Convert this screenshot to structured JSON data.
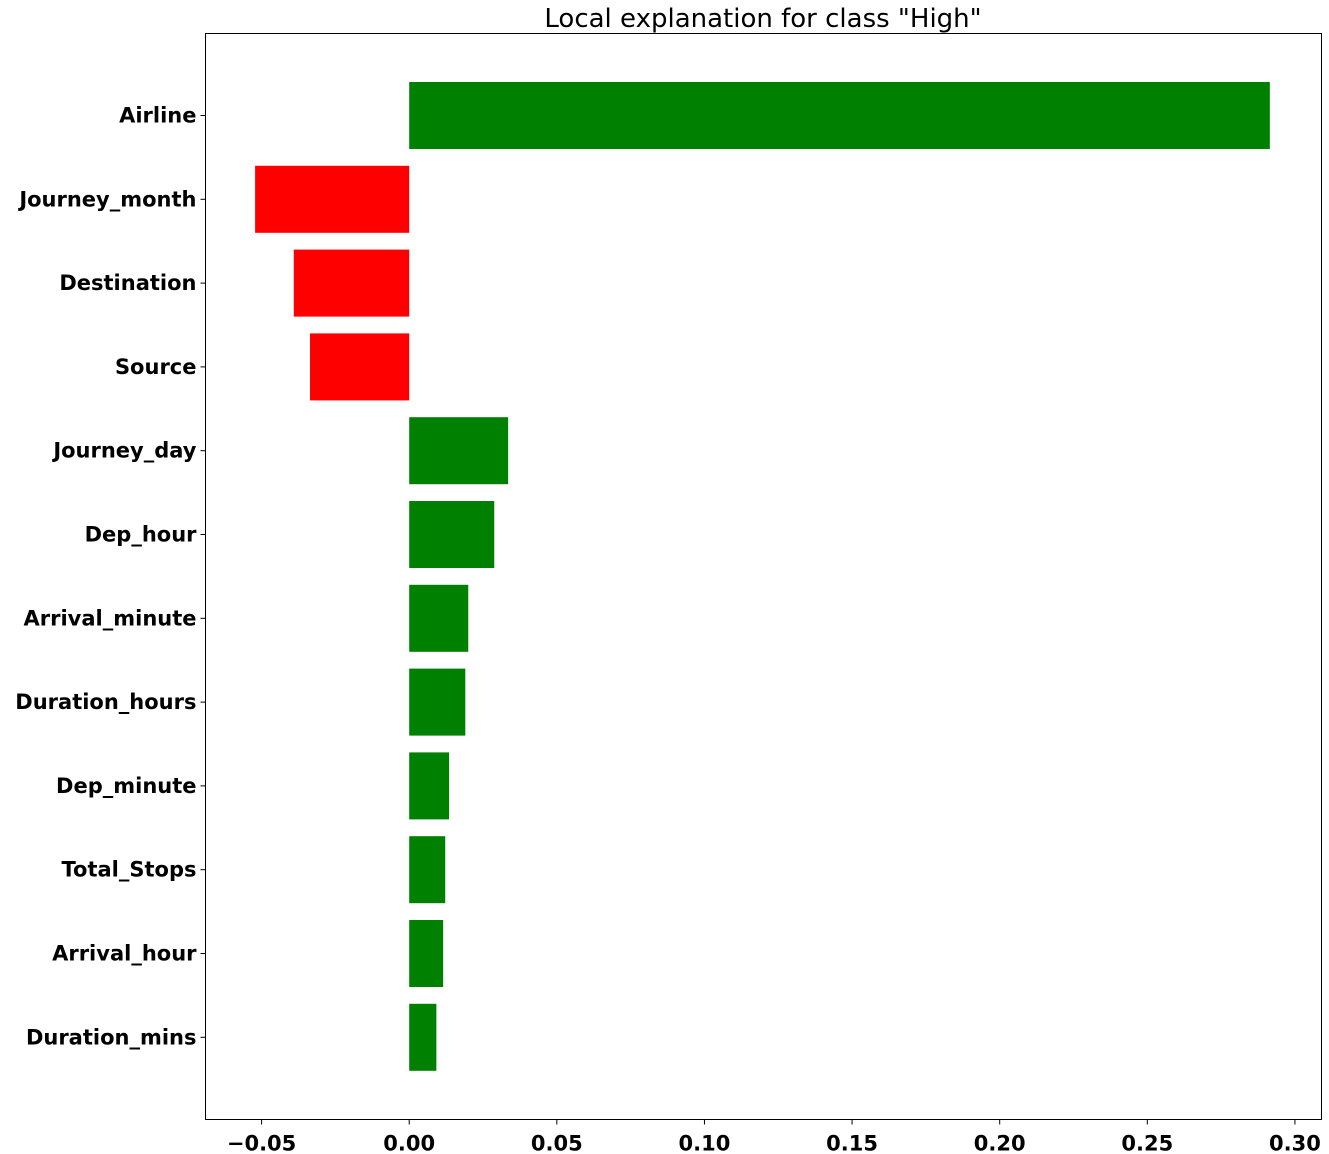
{
  "chart_data": {
    "type": "bar",
    "orientation": "horizontal",
    "title": "Local explanation for class \"High\"",
    "xlabel": "",
    "ylabel": "",
    "xlim": [
      -0.069,
      0.309
    ],
    "grid": false,
    "legend": "none",
    "xticks": [
      -0.05,
      0.0,
      0.05,
      0.1,
      0.15,
      0.2,
      0.25,
      0.3
    ],
    "xtick_labels": [
      "−0.05",
      "0.00",
      "0.05",
      "0.10",
      "0.15",
      "0.20",
      "0.25",
      "0.30"
    ],
    "categories": [
      "Airline",
      "Journey_month",
      "Destination",
      "Source",
      "Journey_day",
      "Dep_hour",
      "Arrival_minute",
      "Duration_hours",
      "Dep_minute",
      "Total_Stops",
      "Arrival_hour",
      "Duration_mins"
    ],
    "values": [
      0.2915,
      -0.0522,
      -0.0391,
      -0.0336,
      0.0335,
      0.0288,
      0.02,
      0.019,
      0.0135,
      0.0122,
      0.0115,
      0.0092
    ],
    "colors": {
      "positive": "#008000",
      "negative": "#ff0000",
      "axis": "#000000"
    }
  }
}
